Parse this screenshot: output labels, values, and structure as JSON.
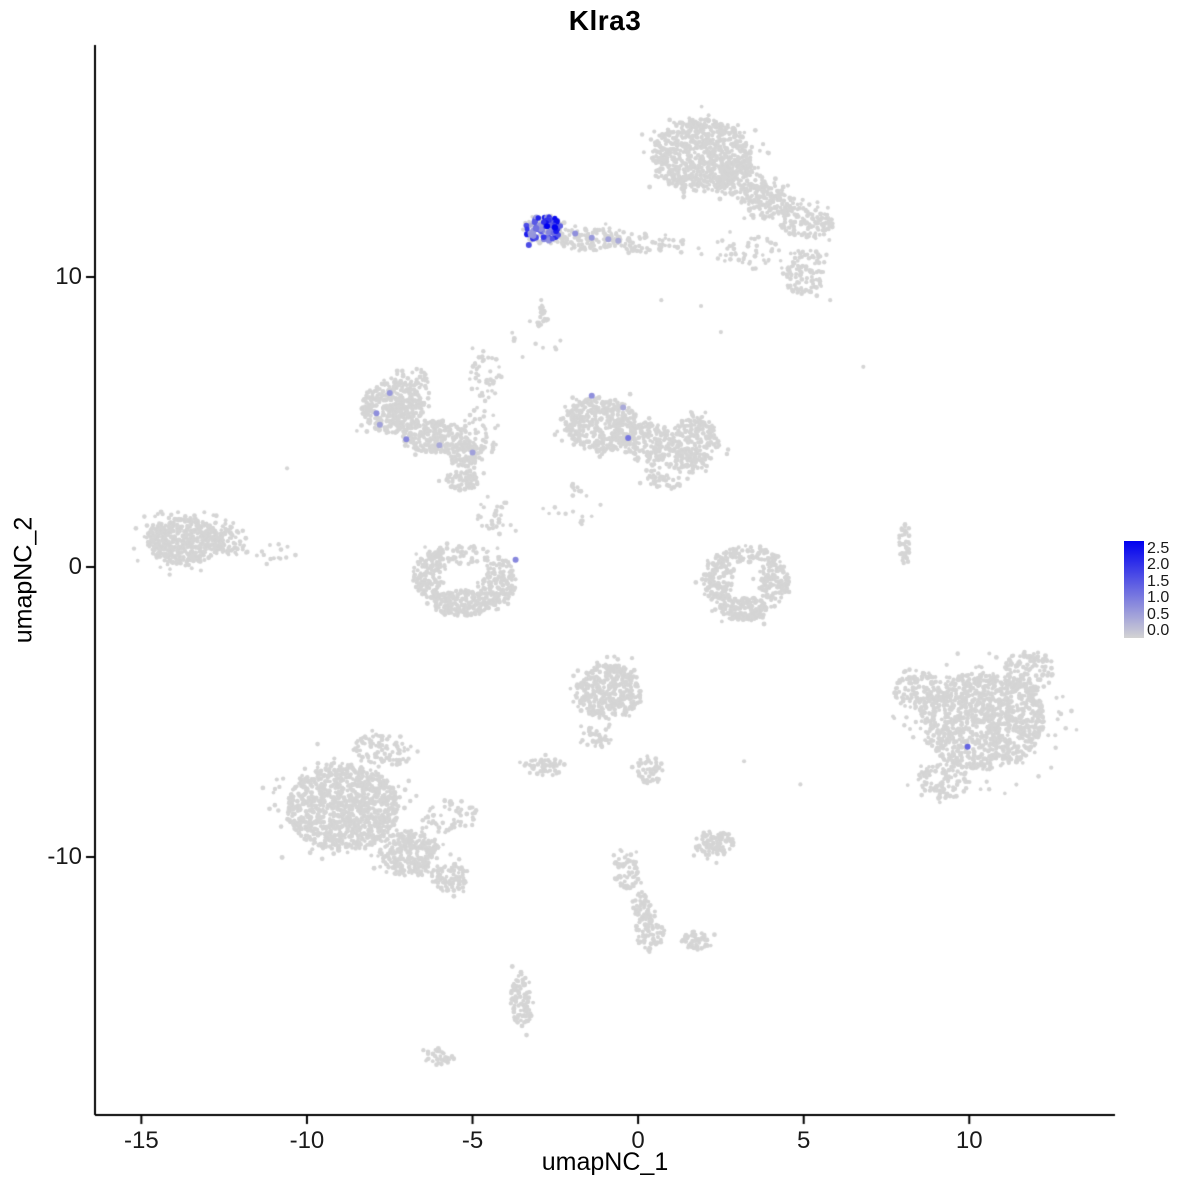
{
  "chart_data": {
    "type": "scatter",
    "title": "Klra3",
    "xlabel": "umapNC_1",
    "ylabel": "umapNC_2",
    "xlim": [
      -16.4,
      14.4
    ],
    "ylim": [
      -18.9,
      18.0
    ],
    "xticks": [
      {
        "value": -15,
        "label": "-15"
      },
      {
        "value": -10,
        "label": "-10"
      },
      {
        "value": -5,
        "label": "-5"
      },
      {
        "value": 0,
        "label": "0"
      },
      {
        "value": 5,
        "label": "5"
      },
      {
        "value": 10,
        "label": "10"
      }
    ],
    "yticks": [
      {
        "value": 10,
        "label": "10"
      },
      {
        "value": 0,
        "label": "0"
      },
      {
        "value": -10,
        "label": "-10"
      }
    ],
    "grid": false,
    "base_color": "#D5D5D5",
    "legend": {
      "ticks": [
        "2.5",
        "2.0",
        "1.5",
        "1.0",
        "0.5",
        "0.0"
      ],
      "vmin": 0.0,
      "vmax": 2.5,
      "low_color": "#D3D3D3",
      "high_color": "#0000F0"
    },
    "background_clusters": [
      {
        "x": 1.9,
        "y": 14.2,
        "rx": 1.5,
        "ry": 1.25,
        "n": 800
      },
      {
        "x": 3.0,
        "y": 13.4,
        "rx": 0.8,
        "ry": 0.6,
        "n": 150
      },
      {
        "x": 3.9,
        "y": 12.6,
        "rx": 0.8,
        "ry": 0.6,
        "n": 150
      },
      {
        "x": 5.1,
        "y": 11.9,
        "rx": 0.8,
        "ry": 0.6,
        "n": 120
      },
      {
        "x": 5.0,
        "y": 10.2,
        "rx": 0.7,
        "ry": 0.8,
        "n": 110
      },
      {
        "x": 3.3,
        "y": 10.9,
        "rx": 1.0,
        "ry": 0.6,
        "n": 50
      },
      {
        "x": -2.85,
        "y": 11.6,
        "rx": 0.6,
        "ry": 0.5,
        "n": 60
      },
      {
        "x": -1.5,
        "y": 11.3,
        "rx": 1.0,
        "ry": 0.4,
        "n": 110
      },
      {
        "x": 0.2,
        "y": 11.15,
        "rx": 1.2,
        "ry": 0.35,
        "n": 70
      },
      {
        "x": -2.9,
        "y": 8.7,
        "rx": 0.18,
        "ry": 0.5,
        "n": 25
      },
      {
        "x": -7.4,
        "y": 5.5,
        "rx": 0.95,
        "ry": 0.9,
        "n": 380
      },
      {
        "x": -6.2,
        "y": 4.5,
        "rx": 0.9,
        "ry": 0.6,
        "n": 220
      },
      {
        "x": -5.2,
        "y": 3.9,
        "rx": 0.55,
        "ry": 0.45,
        "n": 90
      },
      {
        "x": -6.9,
        "y": 6.4,
        "rx": 0.6,
        "ry": 0.5,
        "n": 50
      },
      {
        "x": -4.6,
        "y": 6.6,
        "rx": 0.5,
        "ry": 0.9,
        "n": 45
      },
      {
        "x": -4.8,
        "y": 4.6,
        "rx": 0.6,
        "ry": 0.9,
        "n": 50
      },
      {
        "x": -5.3,
        "y": 3.0,
        "rx": 0.5,
        "ry": 0.4,
        "n": 70
      },
      {
        "x": -4.3,
        "y": 1.8,
        "rx": 0.6,
        "ry": 0.7,
        "n": 30
      },
      {
        "x": -1.1,
        "y": 4.9,
        "rx": 1.1,
        "ry": 0.95,
        "n": 430
      },
      {
        "x": 0.3,
        "y": 4.3,
        "rx": 0.8,
        "ry": 0.7,
        "n": 200
      },
      {
        "x": 1.7,
        "y": 4.3,
        "rx": 0.75,
        "ry": 0.95,
        "n": 230
      },
      {
        "x": 0.9,
        "y": 3.2,
        "rx": 0.7,
        "ry": 0.5,
        "n": 60
      },
      {
        "x": -13.7,
        "y": 0.9,
        "rx": 1.15,
        "ry": 0.8,
        "n": 480
      },
      {
        "x": -12.3,
        "y": 0.9,
        "rx": 0.5,
        "ry": 0.55,
        "n": 70
      },
      {
        "x": -11.2,
        "y": 0.5,
        "rx": 0.7,
        "ry": 0.5,
        "n": 14
      },
      {
        "x": -6.3,
        "y": -0.3,
        "rx": 0.5,
        "ry": 0.85,
        "n": 150
      },
      {
        "x": -5.3,
        "y": -1.25,
        "rx": 0.85,
        "ry": 0.45,
        "n": 210
      },
      {
        "x": -4.2,
        "y": -0.5,
        "rx": 0.5,
        "ry": 0.85,
        "n": 150
      },
      {
        "x": -5.3,
        "y": 0.4,
        "rx": 0.9,
        "ry": 0.35,
        "n": 60
      },
      {
        "x": 2.4,
        "y": -0.4,
        "rx": 0.45,
        "ry": 0.85,
        "n": 140
      },
      {
        "x": 3.2,
        "y": -1.45,
        "rx": 0.75,
        "ry": 0.4,
        "n": 170
      },
      {
        "x": 4.1,
        "y": -0.4,
        "rx": 0.45,
        "ry": 0.8,
        "n": 140
      },
      {
        "x": 3.3,
        "y": 0.45,
        "rx": 0.8,
        "ry": 0.3,
        "n": 60
      },
      {
        "x": 8.05,
        "y": 0.8,
        "rx": 0.18,
        "ry": 0.75,
        "n": 40
      },
      {
        "x": 10.4,
        "y": -5.3,
        "rx": 1.9,
        "ry": 1.7,
        "n": 1150
      },
      {
        "x": 8.4,
        "y": -4.2,
        "rx": 0.7,
        "ry": 0.7,
        "n": 120
      },
      {
        "x": 9.2,
        "y": -7.4,
        "rx": 0.8,
        "ry": 0.6,
        "n": 100
      },
      {
        "x": 11.8,
        "y": -3.6,
        "rx": 0.8,
        "ry": 0.7,
        "n": 120
      },
      {
        "x": -8.9,
        "y": -8.3,
        "rx": 1.7,
        "ry": 1.5,
        "n": 1050
      },
      {
        "x": -6.9,
        "y": -9.9,
        "rx": 0.9,
        "ry": 0.8,
        "n": 260
      },
      {
        "x": -5.7,
        "y": -10.7,
        "rx": 0.6,
        "ry": 0.5,
        "n": 90
      },
      {
        "x": -7.7,
        "y": -6.3,
        "rx": 0.9,
        "ry": 0.6,
        "n": 90
      },
      {
        "x": -5.6,
        "y": -8.6,
        "rx": 0.8,
        "ry": 0.6,
        "n": 60
      },
      {
        "x": -0.9,
        "y": -4.3,
        "rx": 1.0,
        "ry": 0.95,
        "n": 360
      },
      {
        "x": -1.3,
        "y": -5.9,
        "rx": 0.5,
        "ry": 0.4,
        "n": 40
      },
      {
        "x": -2.8,
        "y": -6.9,
        "rx": 0.65,
        "ry": 0.3,
        "n": 60
      },
      {
        "x": 0.35,
        "y": -7.0,
        "rx": 0.4,
        "ry": 0.5,
        "n": 50
      },
      {
        "x": 2.3,
        "y": -9.55,
        "rx": 0.6,
        "ry": 0.45,
        "n": 90
      },
      {
        "x": -0.35,
        "y": -10.5,
        "rx": 0.4,
        "ry": 0.65,
        "n": 70
      },
      {
        "x": 0.1,
        "y": -11.7,
        "rx": 0.3,
        "ry": 0.5,
        "n": 45
      },
      {
        "x": 0.35,
        "y": -12.6,
        "rx": 0.45,
        "ry": 0.6,
        "n": 70
      },
      {
        "x": 1.75,
        "y": -12.9,
        "rx": 0.4,
        "ry": 0.35,
        "n": 50
      },
      {
        "x": -3.5,
        "y": -14.9,
        "rx": 0.35,
        "ry": 0.95,
        "n": 90
      },
      {
        "x": -6.0,
        "y": -16.9,
        "rx": 0.45,
        "ry": 0.3,
        "n": 35
      },
      {
        "x": -2.1,
        "y": 2.1,
        "rx": 0.8,
        "ry": 0.8,
        "n": 22
      },
      {
        "x": -3.4,
        "y": 7.8,
        "rx": 1.1,
        "ry": 0.7,
        "n": 10
      }
    ],
    "background_singles": [
      [
        6.8,
        6.9
      ],
      [
        4.9,
        -7.5
      ],
      [
        3.2,
        -6.7
      ],
      [
        -10.6,
        3.4
      ],
      [
        0.7,
        9.2
      ],
      [
        1.9,
        9.0
      ],
      [
        5.8,
        9.2
      ],
      [
        -11.0,
        0.3
      ],
      [
        2.5,
        8.1
      ]
    ],
    "expression_clusters": [
      {
        "x": -2.85,
        "y": 11.65,
        "rx": 0.55,
        "ry": 0.45,
        "n": 55,
        "vmin": 0.4,
        "vmax": 2.2
      },
      {
        "x": -2.6,
        "y": 11.8,
        "rx": 0.3,
        "ry": 0.25,
        "n": 12,
        "vmin": 1.2,
        "vmax": 2.5
      }
    ],
    "expression_points": [
      {
        "x": -2.75,
        "y": 11.75,
        "v": 2.5
      },
      {
        "x": -3.3,
        "y": 11.1,
        "v": 1.6
      },
      {
        "x": -1.9,
        "y": 11.5,
        "v": 0.8
      },
      {
        "x": -1.4,
        "y": 11.35,
        "v": 0.7
      },
      {
        "x": -0.9,
        "y": 11.3,
        "v": 0.6
      },
      {
        "x": -0.6,
        "y": 11.25,
        "v": 0.5
      },
      {
        "x": -7.5,
        "y": 6.0,
        "v": 0.7
      },
      {
        "x": -7.9,
        "y": 5.3,
        "v": 0.8
      },
      {
        "x": -7.8,
        "y": 4.9,
        "v": 0.6
      },
      {
        "x": -7.0,
        "y": 4.4,
        "v": 0.9
      },
      {
        "x": -6.0,
        "y": 4.2,
        "v": 0.5
      },
      {
        "x": -5.0,
        "y": 3.95,
        "v": 0.6
      },
      {
        "x": -1.4,
        "y": 5.9,
        "v": 0.8
      },
      {
        "x": -0.45,
        "y": 5.5,
        "v": 0.5
      },
      {
        "x": -0.3,
        "y": 4.45,
        "v": 1.1
      },
      {
        "x": -3.7,
        "y": 0.25,
        "v": 0.9
      },
      {
        "x": 9.95,
        "y": -6.2,
        "v": 1.3
      }
    ]
  }
}
